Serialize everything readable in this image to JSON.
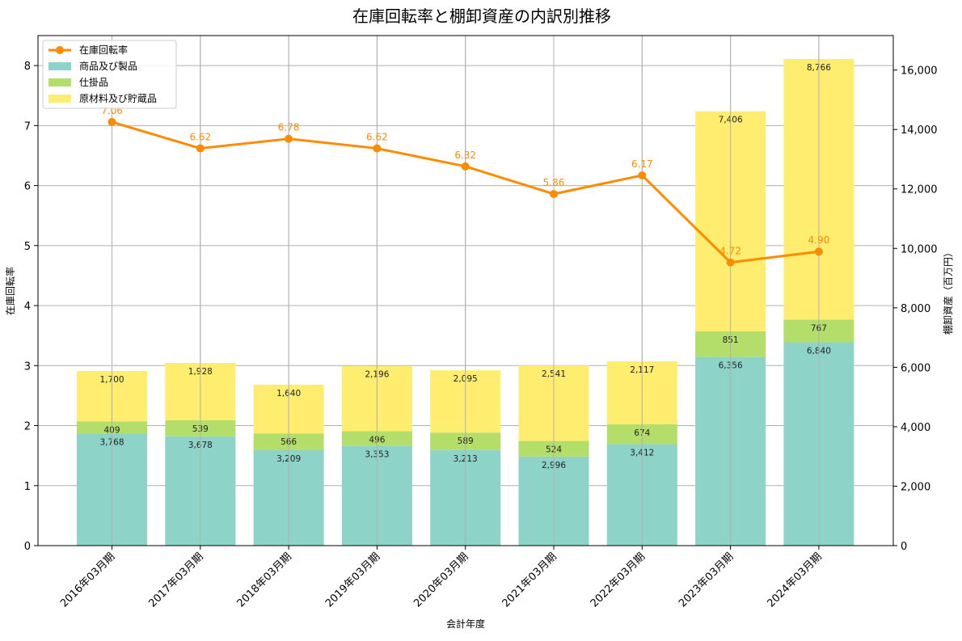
{
  "chart_data": {
    "type": "bar",
    "title": "在庫回転率と棚卸資産の内訳別推移",
    "xlabel": "会計年度",
    "ylabel_left": "在庫回転率",
    "ylabel_right": "棚卸資産（百万円）",
    "categories": [
      "2016年03月期",
      "2017年03月期",
      "2018年03月期",
      "2019年03月期",
      "2020年03月期",
      "2021年03月期",
      "2022年03月期",
      "2023年03月期",
      "2024年03月期"
    ],
    "stacked_series": [
      {
        "name": "商品及び製品",
        "color": "#8dd3c7",
        "values": [
          3768,
          3678,
          3209,
          3353,
          3213,
          2996,
          3412,
          6356,
          6840
        ],
        "labels": [
          "3,768",
          "3,678",
          "3,209",
          "3,353",
          "3,213",
          "2,996",
          "3,412",
          "6,356",
          "6,840"
        ]
      },
      {
        "name": "仕掛品",
        "color": "#b3de69",
        "values": [
          409,
          539,
          566,
          496,
          589,
          524,
          674,
          851,
          767
        ],
        "labels": [
          "409",
          "539",
          "566",
          "496",
          "589",
          "524",
          "674",
          "851",
          "767"
        ]
      },
      {
        "name": "原材料及び貯蔵品",
        "color": "#ffed6f",
        "values": [
          1700,
          1928,
          1640,
          2196,
          2095,
          2541,
          2117,
          7406,
          8766
        ],
        "labels": [
          "1,700",
          "1,928",
          "1,640",
          "2,196",
          "2,095",
          "2,541",
          "2,117",
          "7,406",
          "8,766"
        ]
      }
    ],
    "line_series": {
      "name": "在庫回転率",
      "color": "#ff8c00",
      "values": [
        7.06,
        6.62,
        6.78,
        6.62,
        6.32,
        5.86,
        6.17,
        4.72,
        4.9
      ],
      "labels": [
        "7.06",
        "6.62",
        "6.78",
        "6.62",
        "6.32",
        "5.86",
        "6.17",
        "4.72",
        "4.90"
      ]
    },
    "ylim_left": [
      0,
      8.5
    ],
    "ylim_right": [
      0,
      17160
    ],
    "yticks_left": [
      "0",
      "1",
      "2",
      "3",
      "4",
      "5",
      "6",
      "7",
      "8"
    ],
    "yticks_right": [
      "0",
      "2,000",
      "4,000",
      "6,000",
      "8,000",
      "10,000",
      "12,000",
      "14,000",
      "16,000"
    ],
    "yticks_left_values": [
      0,
      1,
      2,
      3,
      4,
      5,
      6,
      7,
      8
    ],
    "yticks_right_values": [
      0,
      2000,
      4000,
      6000,
      8000,
      10000,
      12000,
      14000,
      16000
    ],
    "grid": true,
    "legend_position": "top-left"
  }
}
